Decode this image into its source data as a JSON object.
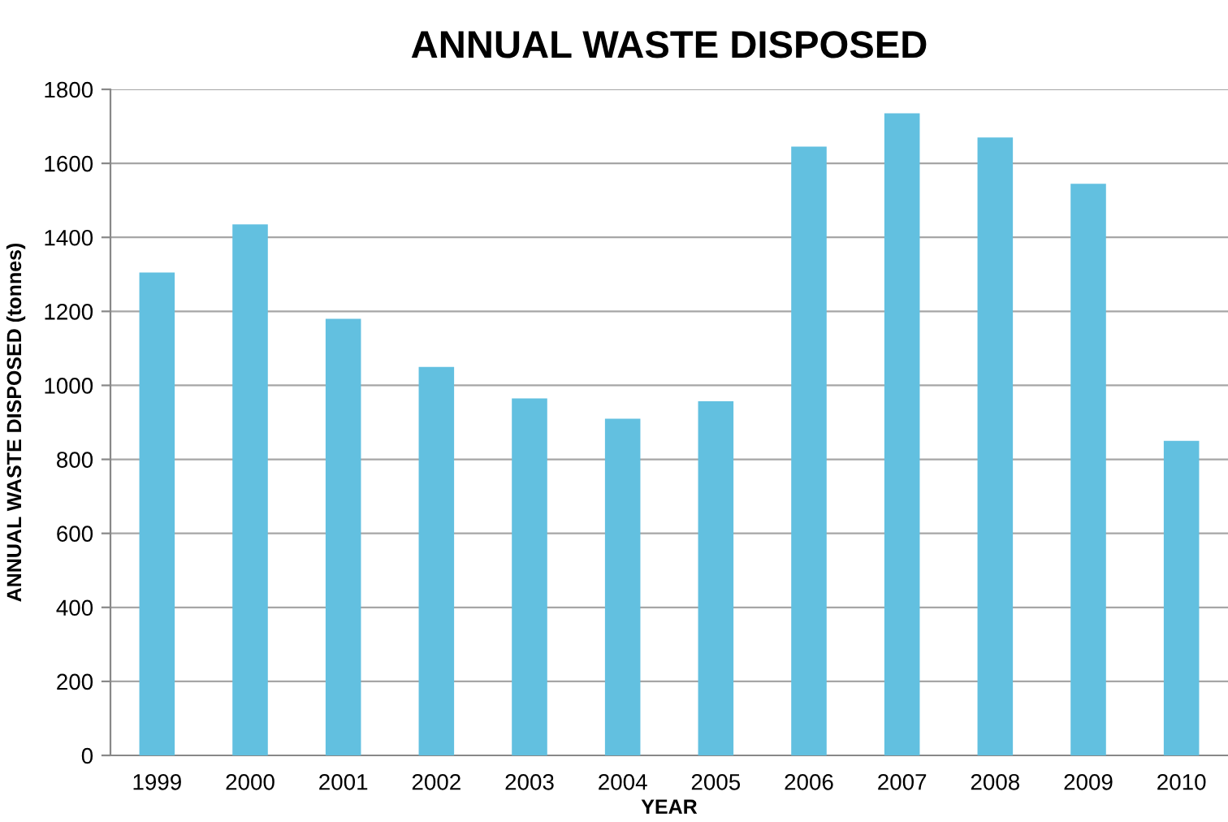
{
  "chart_data": {
    "type": "bar",
    "title": "ANNUAL WASTE DISPOSED",
    "xlabel": "YEAR",
    "ylabel": "ANNUAL WASTE DISPOSED (tonnes)",
    "categories": [
      "1999",
      "2000",
      "2001",
      "2002",
      "2003",
      "2004",
      "2005",
      "2006",
      "2007",
      "2008",
      "2009",
      "2010"
    ],
    "values": [
      1305,
      1435,
      1180,
      1050,
      965,
      910,
      957,
      1645,
      1735,
      1670,
      1545,
      850
    ],
    "color": "#62c0e0",
    "ylim": [
      0,
      1800
    ],
    "yticks": [
      0,
      200,
      400,
      600,
      800,
      1000,
      1200,
      1400,
      1600,
      1800
    ],
    "grid": "y",
    "legend": false
  }
}
